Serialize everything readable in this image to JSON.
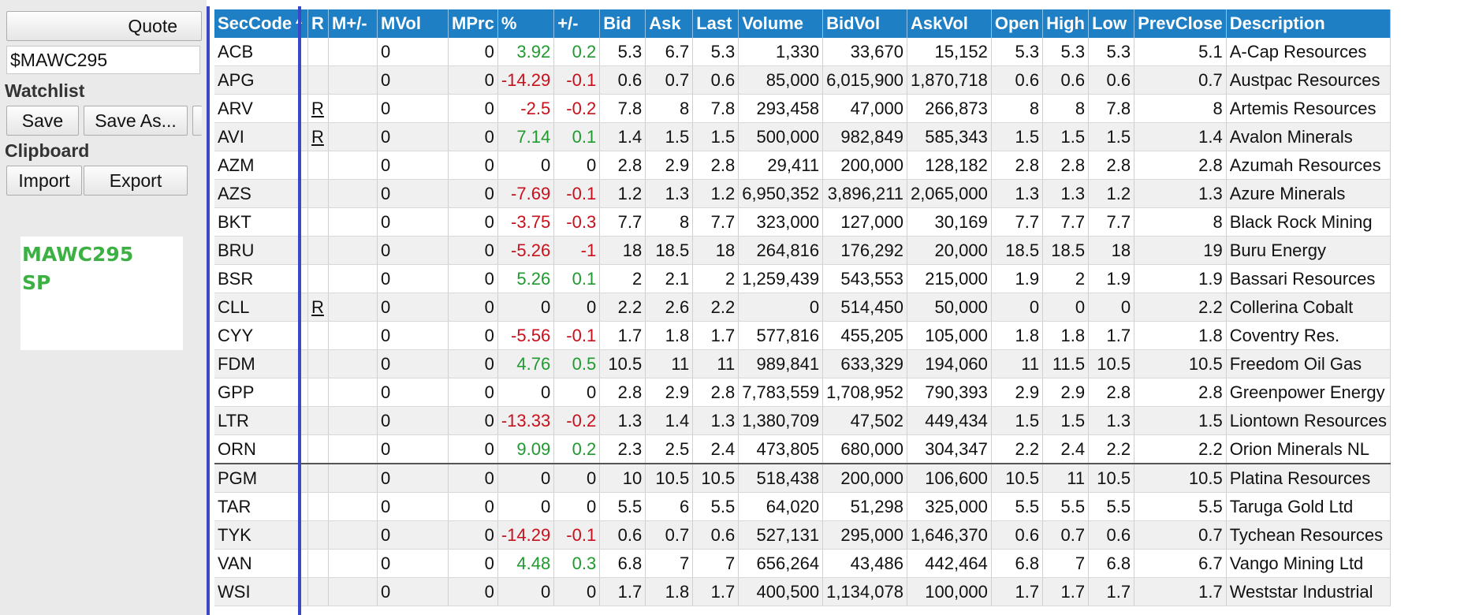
{
  "left_panel": {
    "quote_label": "Quote",
    "symbol_value": "$MAWC295",
    "watchlist_label": "Watchlist",
    "save_label": "Save",
    "save_as_label": "Save As...",
    "clipboard_label": "Clipboard",
    "import_label": "Import",
    "export_label": "Export",
    "notes": [
      "MAWC295",
      "SP"
    ]
  },
  "grid": {
    "columns": [
      "SecCode",
      "R",
      "M+/-",
      "MVol",
      "MPrc",
      "%",
      "+/-",
      "Bid",
      "Ask",
      "Last",
      "Volume",
      "BidVol",
      "AskVol",
      "Open",
      "High",
      "Low",
      "PrevClose",
      "Description"
    ],
    "rows": [
      {
        "code": "ACB",
        "r": "",
        "m": "",
        "mvol": "0",
        "mprc": "0",
        "pct": "3.92",
        "chg": "0.2",
        "bid": "5.3",
        "ask": "6.7",
        "last": "5.3",
        "volume": "1,330",
        "bidvol": "33,670",
        "askvol": "15,152",
        "open": "5.3",
        "high": "5.3",
        "low": "5.3",
        "prev": "5.1",
        "desc": "A-Cap Resources",
        "dir": "pos"
      },
      {
        "code": "APG",
        "r": "",
        "m": "",
        "mvol": "0",
        "mprc": "0",
        "pct": "-14.29",
        "chg": "-0.1",
        "bid": "0.6",
        "ask": "0.7",
        "last": "0.6",
        "volume": "85,000",
        "bidvol": "6,015,900",
        "askvol": "1,870,718",
        "open": "0.6",
        "high": "0.6",
        "low": "0.6",
        "prev": "0.7",
        "desc": "Austpac Resources",
        "dir": "neg"
      },
      {
        "code": "ARV",
        "r": "R",
        "m": "",
        "mvol": "0",
        "mprc": "0",
        "pct": "-2.5",
        "chg": "-0.2",
        "bid": "7.8",
        "ask": "8",
        "last": "7.8",
        "volume": "293,458",
        "bidvol": "47,000",
        "askvol": "266,873",
        "open": "8",
        "high": "8",
        "low": "7.8",
        "prev": "8",
        "desc": "Artemis Resources",
        "dir": "neg"
      },
      {
        "code": "AVI",
        "r": "R",
        "m": "",
        "mvol": "0",
        "mprc": "0",
        "pct": "7.14",
        "chg": "0.1",
        "bid": "1.4",
        "ask": "1.5",
        "last": "1.5",
        "volume": "500,000",
        "bidvol": "982,849",
        "askvol": "585,343",
        "open": "1.5",
        "high": "1.5",
        "low": "1.5",
        "prev": "1.4",
        "desc": "Avalon Minerals",
        "dir": "pos"
      },
      {
        "code": "AZM",
        "r": "",
        "m": "",
        "mvol": "0",
        "mprc": "0",
        "pct": "0",
        "chg": "0",
        "bid": "2.8",
        "ask": "2.9",
        "last": "2.8",
        "volume": "29,411",
        "bidvol": "200,000",
        "askvol": "128,182",
        "open": "2.8",
        "high": "2.8",
        "low": "2.8",
        "prev": "2.8",
        "desc": "Azumah Resources",
        "dir": ""
      },
      {
        "code": "AZS",
        "r": "",
        "m": "",
        "mvol": "0",
        "mprc": "0",
        "pct": "-7.69",
        "chg": "-0.1",
        "bid": "1.2",
        "ask": "1.3",
        "last": "1.2",
        "volume": "6,950,352",
        "bidvol": "3,896,211",
        "askvol": "2,065,000",
        "open": "1.3",
        "high": "1.3",
        "low": "1.2",
        "prev": "1.3",
        "desc": "Azure Minerals",
        "dir": "neg"
      },
      {
        "code": "BKT",
        "r": "",
        "m": "",
        "mvol": "0",
        "mprc": "0",
        "pct": "-3.75",
        "chg": "-0.3",
        "bid": "7.7",
        "ask": "8",
        "last": "7.7",
        "volume": "323,000",
        "bidvol": "127,000",
        "askvol": "30,169",
        "open": "7.7",
        "high": "7.7",
        "low": "7.7",
        "prev": "8",
        "desc": "Black Rock Mining",
        "dir": "neg"
      },
      {
        "code": "BRU",
        "r": "",
        "m": "",
        "mvol": "0",
        "mprc": "0",
        "pct": "-5.26",
        "chg": "-1",
        "bid": "18",
        "ask": "18.5",
        "last": "18",
        "volume": "264,816",
        "bidvol": "176,292",
        "askvol": "20,000",
        "open": "18.5",
        "high": "18.5",
        "low": "18",
        "prev": "19",
        "desc": "Buru Energy",
        "dir": "neg"
      },
      {
        "code": "BSR",
        "r": "",
        "m": "",
        "mvol": "0",
        "mprc": "0",
        "pct": "5.26",
        "chg": "0.1",
        "bid": "2",
        "ask": "2.1",
        "last": "2",
        "volume": "1,259,439",
        "bidvol": "543,553",
        "askvol": "215,000",
        "open": "1.9",
        "high": "2",
        "low": "1.9",
        "prev": "1.9",
        "desc": "Bassari Resources",
        "dir": "pos"
      },
      {
        "code": "CLL",
        "r": "R",
        "m": "",
        "mvol": "0",
        "mprc": "0",
        "pct": "0",
        "chg": "0",
        "bid": "2.2",
        "ask": "2.6",
        "last": "2.2",
        "volume": "0",
        "bidvol": "514,450",
        "askvol": "50,000",
        "open": "0",
        "high": "0",
        "low": "0",
        "prev": "2.2",
        "desc": "Collerina Cobalt",
        "dir": ""
      },
      {
        "code": "CYY",
        "r": "",
        "m": "",
        "mvol": "0",
        "mprc": "0",
        "pct": "-5.56",
        "chg": "-0.1",
        "bid": "1.7",
        "ask": "1.8",
        "last": "1.7",
        "volume": "577,816",
        "bidvol": "455,205",
        "askvol": "105,000",
        "open": "1.8",
        "high": "1.8",
        "low": "1.7",
        "prev": "1.8",
        "desc": "Coventry Res.",
        "dir": "neg"
      },
      {
        "code": "FDM",
        "r": "",
        "m": "",
        "mvol": "0",
        "mprc": "0",
        "pct": "4.76",
        "chg": "0.5",
        "bid": "10.5",
        "ask": "11",
        "last": "11",
        "volume": "989,841",
        "bidvol": "633,329",
        "askvol": "194,060",
        "open": "11",
        "high": "11.5",
        "low": "10.5",
        "prev": "10.5",
        "desc": "Freedom Oil Gas",
        "dir": "pos"
      },
      {
        "code": "GPP",
        "r": "",
        "m": "",
        "mvol": "0",
        "mprc": "0",
        "pct": "0",
        "chg": "0",
        "bid": "2.8",
        "ask": "2.9",
        "last": "2.8",
        "volume": "7,783,559",
        "bidvol": "1,708,952",
        "askvol": "790,393",
        "open": "2.9",
        "high": "2.9",
        "low": "2.8",
        "prev": "2.8",
        "desc": "Greenpower Energy",
        "dir": ""
      },
      {
        "code": "LTR",
        "r": "",
        "m": "",
        "mvol": "0",
        "mprc": "0",
        "pct": "-13.33",
        "chg": "-0.2",
        "bid": "1.3",
        "ask": "1.4",
        "last": "1.3",
        "volume": "1,380,709",
        "bidvol": "47,502",
        "askvol": "449,434",
        "open": "1.5",
        "high": "1.5",
        "low": "1.3",
        "prev": "1.5",
        "desc": "Liontown Resources",
        "dir": "neg"
      },
      {
        "code": "ORN",
        "r": "",
        "m": "",
        "mvol": "0",
        "mprc": "0",
        "pct": "9.09",
        "chg": "0.2",
        "bid": "2.3",
        "ask": "2.5",
        "last": "2.4",
        "volume": "473,805",
        "bidvol": "680,000",
        "askvol": "304,347",
        "open": "2.2",
        "high": "2.4",
        "low": "2.2",
        "prev": "2.2",
        "desc": "Orion Minerals NL",
        "dir": "pos"
      },
      {
        "code": "PGM",
        "r": "",
        "m": "",
        "mvol": "0",
        "mprc": "0",
        "pct": "0",
        "chg": "0",
        "bid": "10",
        "ask": "10.5",
        "last": "10.5",
        "volume": "518,438",
        "bidvol": "200,000",
        "askvol": "106,600",
        "open": "10.5",
        "high": "11",
        "low": "10.5",
        "prev": "10.5",
        "desc": "Platina Resources",
        "dir": ""
      },
      {
        "code": "TAR",
        "r": "",
        "m": "",
        "mvol": "0",
        "mprc": "0",
        "pct": "0",
        "chg": "0",
        "bid": "5.5",
        "ask": "6",
        "last": "5.5",
        "volume": "64,020",
        "bidvol": "51,298",
        "askvol": "325,000",
        "open": "5.5",
        "high": "5.5",
        "low": "5.5",
        "prev": "5.5",
        "desc": "Taruga Gold Ltd",
        "dir": ""
      },
      {
        "code": "TYK",
        "r": "",
        "m": "",
        "mvol": "0",
        "mprc": "0",
        "pct": "-14.29",
        "chg": "-0.1",
        "bid": "0.6",
        "ask": "0.7",
        "last": "0.6",
        "volume": "527,131",
        "bidvol": "295,000",
        "askvol": "1,646,370",
        "open": "0.6",
        "high": "0.7",
        "low": "0.6",
        "prev": "0.7",
        "desc": "Tychean Resources",
        "dir": "neg"
      },
      {
        "code": "VAN",
        "r": "",
        "m": "",
        "mvol": "0",
        "mprc": "0",
        "pct": "4.48",
        "chg": "0.3",
        "bid": "6.8",
        "ask": "7",
        "last": "7",
        "volume": "656,264",
        "bidvol": "43,486",
        "askvol": "442,464",
        "open": "6.8",
        "high": "7",
        "low": "6.8",
        "prev": "6.7",
        "desc": "Vango Mining Ltd",
        "dir": "pos"
      },
      {
        "code": "WSI",
        "r": "",
        "m": "",
        "mvol": "0",
        "mprc": "0",
        "pct": "0",
        "chg": "0",
        "bid": "1.7",
        "ask": "1.8",
        "last": "1.7",
        "volume": "400,500",
        "bidvol": "1,134,078",
        "askvol": "100,000",
        "open": "1.7",
        "high": "1.7",
        "low": "1.7",
        "prev": "1.7",
        "desc": "Weststar Industrial",
        "dir": ""
      }
    ]
  },
  "colors": {
    "header_bg": "#1f7fc4",
    "positive": "#1f9a2f",
    "negative": "#c8101c",
    "note_green": "#3cb043",
    "selection_border": "#3b47c4"
  }
}
